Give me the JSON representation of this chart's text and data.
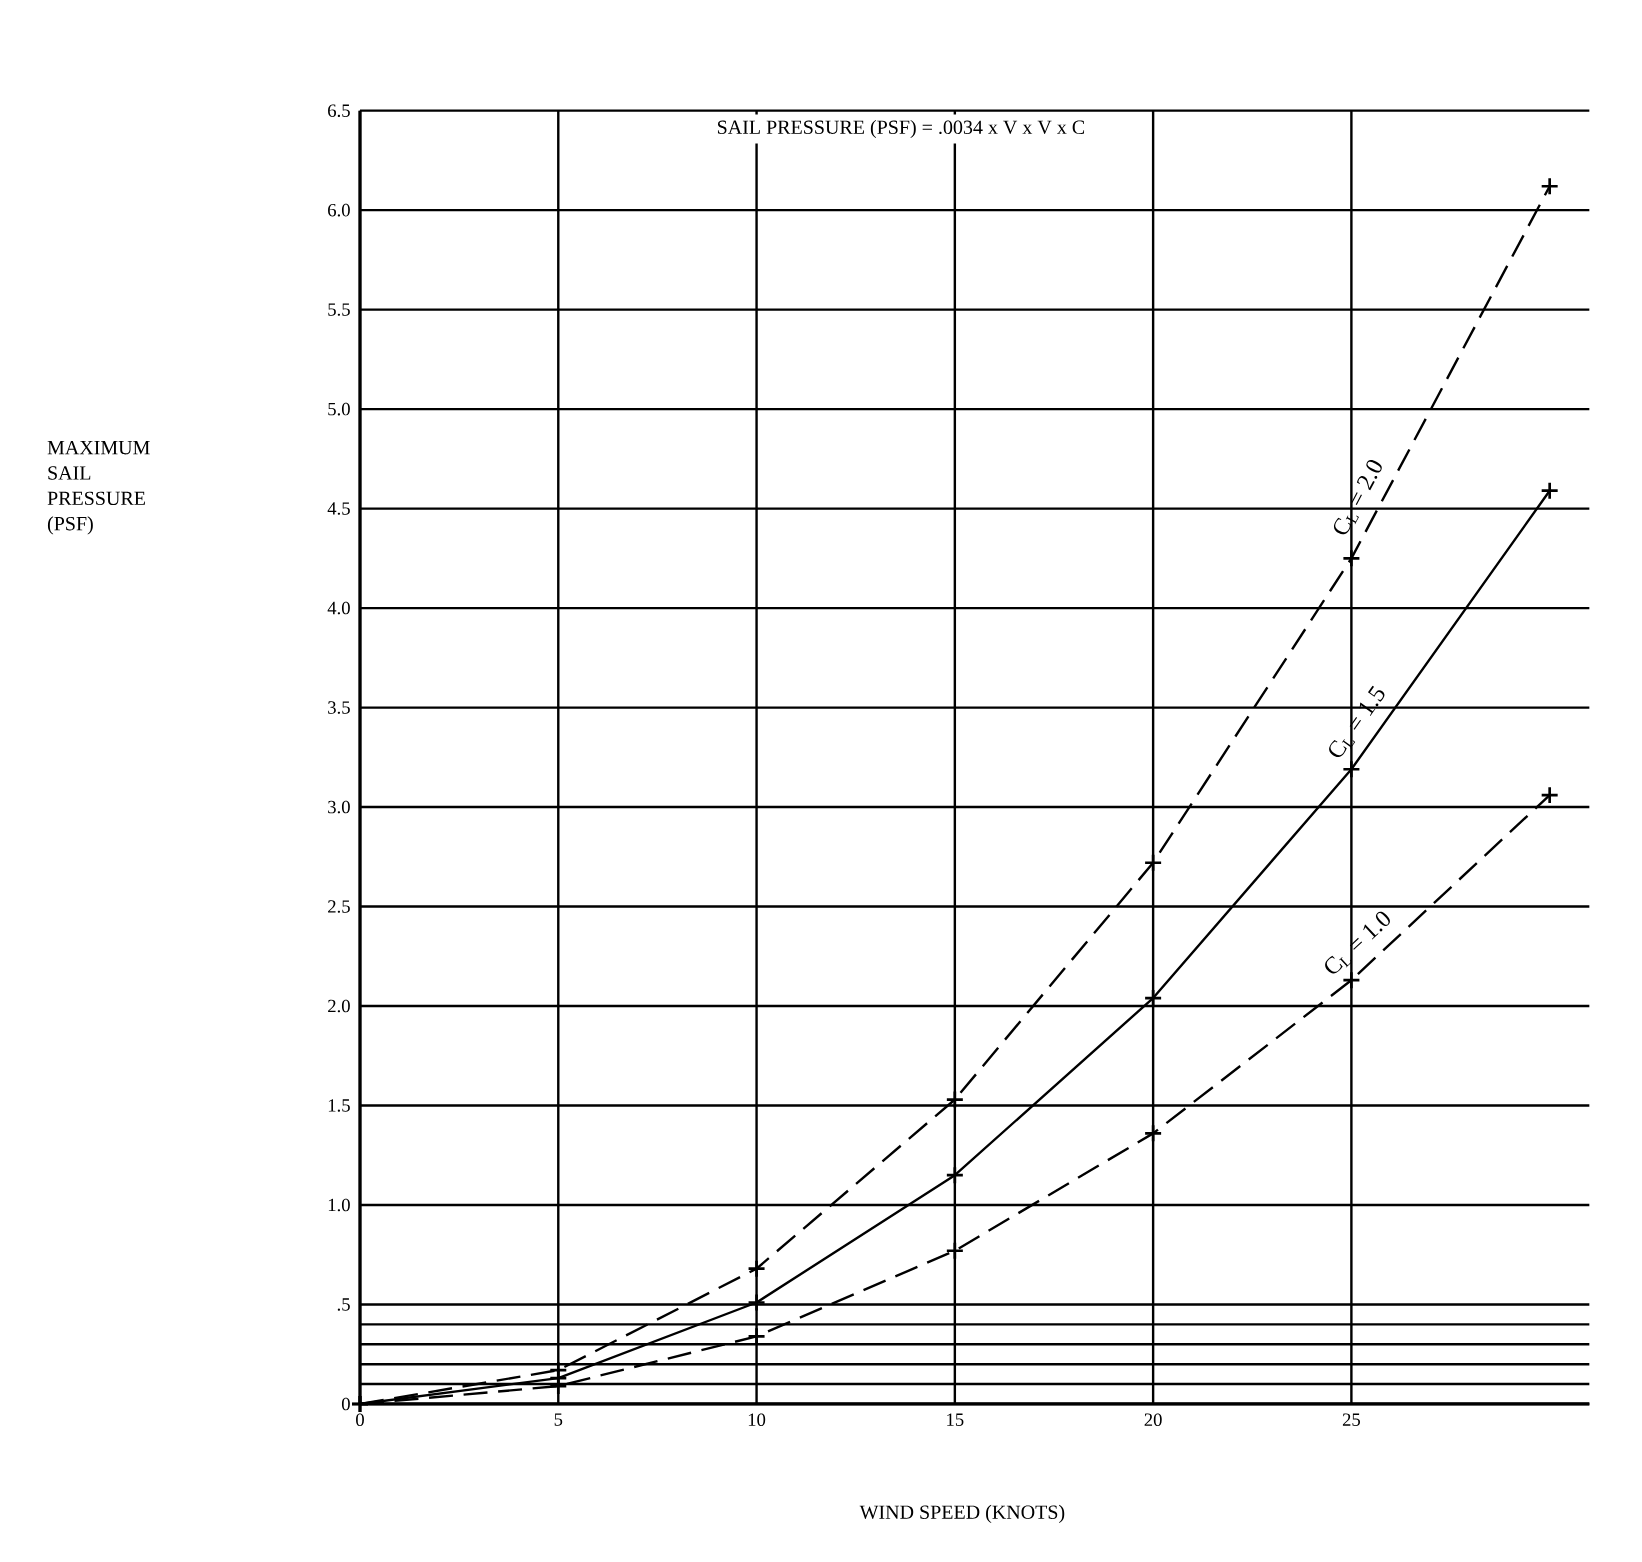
{
  "chart_data": {
    "type": "line",
    "title": "SAIL PRESSURE (PSF) = .0034 x V x V x C",
    "xlabel": "WIND SPEED (KNOTS)",
    "annotations": [
      "MAXIMUM SAIL PRESSURE (PSF)"
    ],
    "x": [
      0,
      5,
      10,
      15,
      20,
      25,
      30
    ],
    "series": [
      {
        "name": "C$_{L}$ = 2.0",
        "color": "#000000",
        "line_style": "dashed",
        "values": [
          0,
          0.17,
          0.68,
          1.53,
          2.72,
          4.25,
          6.12
        ]
      },
      {
        "name": "C$_{L}$ = 1.5",
        "color": "#000000",
        "line_style": "solid",
        "values": [
          0,
          0.13,
          0.51,
          1.15,
          2.04,
          3.19,
          4.59
        ]
      },
      {
        "name": "C$_{L}$ = 1.0",
        "color": "#000000",
        "line_style": "dashed",
        "values": [
          0,
          0.09,
          0.34,
          0.77,
          1.36,
          2.13,
          3.06
        ]
      }
    ],
    "xlim": [
      0,
      31
    ],
    "xticks": [
      0,
      5,
      10,
      15,
      20,
      25
    ],
    "ylim": [
      0,
      6.5
    ],
    "yticks": [
      0,
      {
        "value": 0.5,
        "label": ".5"
      },
      {
        "value": 1.0,
        "label": "1.0"
      },
      {
        "value": 1.5,
        "label": "1.5"
      },
      {
        "value": 2.0,
        "label": "2.0"
      },
      {
        "value": 2.5,
        "label": "2.5"
      },
      {
        "value": 3.0,
        "label": "3.0"
      },
      {
        "value": 3.5,
        "label": "3.5"
      },
      {
        "value": 4.0,
        "label": "4.0"
      },
      {
        "value": 4.5,
        "label": "4.5"
      },
      {
        "value": 5.0,
        "label": "5.0"
      },
      {
        "value": 5.5,
        "label": "5.5"
      },
      {
        "value": 6.0,
        "label": "6.0"
      },
      {
        "value": 6.5,
        "label": "6.5"
      }
    ],
    "ref_lines": [
      {
        "axis": "y",
        "value": 0.1
      },
      {
        "axis": "y",
        "value": 0.2
      },
      {
        "axis": "y",
        "value": 0.3
      },
      {
        "axis": "y",
        "value": 0.4
      }
    ],
    "grid": true,
    "marker": "cross"
  }
}
